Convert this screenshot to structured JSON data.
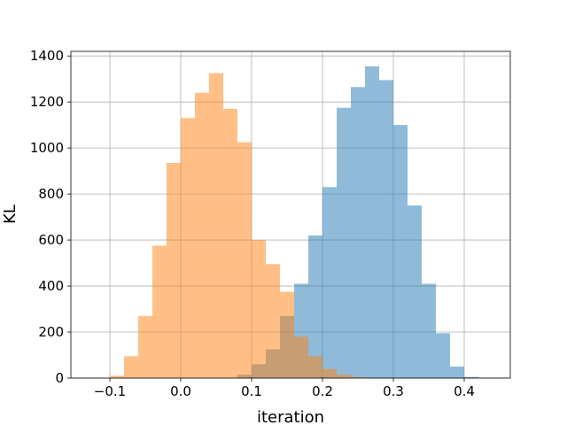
{
  "chart_data": {
    "type": "histogram",
    "title": "",
    "xlabel": "iteration",
    "ylabel": "KL",
    "xlim": [
      -0.155,
      0.465
    ],
    "ylim": [
      0,
      1420
    ],
    "xticks": [
      -0.1,
      0.0,
      0.1,
      0.2,
      0.3,
      0.4
    ],
    "xtick_labels": [
      "−0.1",
      "0.0",
      "0.1",
      "0.2",
      "0.3",
      "0.4"
    ],
    "yticks": [
      0,
      200,
      400,
      600,
      800,
      1000,
      1200,
      1400
    ],
    "ytick_labels": [
      "0",
      "200",
      "400",
      "600",
      "800",
      "1000",
      "1200",
      "1400"
    ],
    "grid": true,
    "series": [
      {
        "color": "#1f77b4",
        "alpha": 0.5,
        "bin_edges": [
          0.08,
          0.1,
          0.12,
          0.14,
          0.16,
          0.18,
          0.2,
          0.22,
          0.24,
          0.26,
          0.28,
          0.3,
          0.32,
          0.34,
          0.36,
          0.38,
          0.4,
          0.42
        ],
        "counts": [
          15,
          60,
          125,
          270,
          410,
          620,
          830,
          1175,
          1265,
          1355,
          1295,
          1100,
          750,
          410,
          195,
          50,
          5
        ]
      },
      {
        "color": "#ff7f0e",
        "alpha": 0.5,
        "bin_edges": [
          -0.1,
          -0.08,
          -0.06,
          -0.04,
          -0.02,
          0.0,
          0.02,
          0.04,
          0.06,
          0.08,
          0.1,
          0.12,
          0.14,
          0.16,
          0.18,
          0.2,
          0.22,
          0.24,
          0.26
        ],
        "counts": [
          10,
          95,
          270,
          575,
          935,
          1130,
          1240,
          1325,
          1170,
          1025,
          600,
          495,
          375,
          180,
          95,
          40,
          15,
          5
        ]
      }
    ]
  }
}
